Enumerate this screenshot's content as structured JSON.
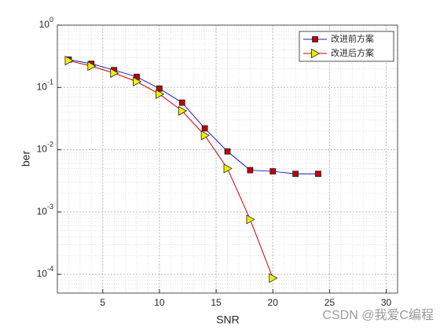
{
  "chart_data": {
    "type": "line",
    "x_label": "SNR",
    "y_label": "ber",
    "xlim": [
      1,
      31
    ],
    "xticks": [
      5,
      10,
      15,
      20,
      25,
      30
    ],
    "ylim": [
      5e-05,
      1
    ],
    "log_y": true,
    "yticks": [
      {
        "value": 0.0001,
        "label": "10^-4"
      },
      {
        "value": 0.001,
        "label": "10^-3"
      },
      {
        "value": 0.01,
        "label": "10^-2"
      },
      {
        "value": 0.1,
        "label": "10^-1"
      },
      {
        "value": 1,
        "label": "10^0"
      }
    ],
    "grid": true,
    "minor_grid": true,
    "legend": "upper right",
    "series": [
      {
        "name": "改进前方案",
        "color": "#1a1acc",
        "marker": "square",
        "marker_color": "#c00000",
        "x": [
          2,
          4,
          6,
          8,
          10,
          12,
          14,
          16,
          18,
          20,
          22,
          24
        ],
        "values": [
          0.28,
          0.24,
          0.19,
          0.148,
          0.096,
          0.057,
          0.022,
          0.0094,
          0.0047,
          0.0045,
          0.0041,
          0.0041
        ]
      },
      {
        "name": "改进后方案",
        "color": "#d00000",
        "marker": "triangle-right",
        "marker_color": "#f0f000",
        "x": [
          2,
          4,
          6,
          8,
          10,
          12,
          14,
          16,
          18,
          20
        ],
        "values": [
          0.27,
          0.22,
          0.17,
          0.124,
          0.078,
          0.042,
          0.017,
          0.005,
          0.00076,
          8.7e-05
        ]
      }
    ],
    "watermark": "CSDN @我爱C编程"
  }
}
